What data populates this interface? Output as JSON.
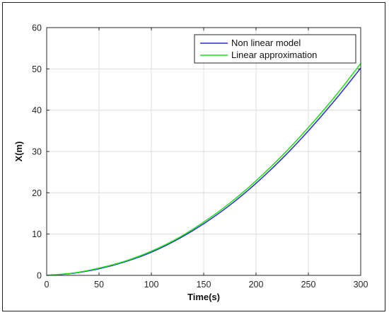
{
  "chart_data": {
    "type": "line",
    "title": "",
    "xlabel": "Time(s)",
    "ylabel": "X(m)",
    "xlim": [
      0,
      300
    ],
    "ylim": [
      0,
      60
    ],
    "xticks": [
      0,
      50,
      100,
      150,
      200,
      250,
      300
    ],
    "yticks": [
      0,
      10,
      20,
      30,
      40,
      50,
      60
    ],
    "grid": true,
    "legend_position": "top-right",
    "series": [
      {
        "name": "Non linear model",
        "color": "#2a2ad8",
        "x": [
          0,
          25,
          50,
          75,
          100,
          125,
          150,
          175,
          200,
          225,
          250,
          275,
          300
        ],
        "y": [
          0,
          0.5,
          1.6,
          3.3,
          5.6,
          8.7,
          12.5,
          17.0,
          22.3,
          28.3,
          35.0,
          42.3,
          50.2
        ]
      },
      {
        "name": "Linear approximation",
        "color": "#19e019",
        "x": [
          0,
          25,
          50,
          75,
          100,
          125,
          150,
          175,
          200,
          225,
          250,
          275,
          300
        ],
        "y": [
          0,
          0.55,
          1.75,
          3.45,
          5.85,
          8.95,
          12.9,
          17.5,
          22.9,
          29.0,
          35.8,
          43.2,
          51.3
        ]
      }
    ]
  }
}
